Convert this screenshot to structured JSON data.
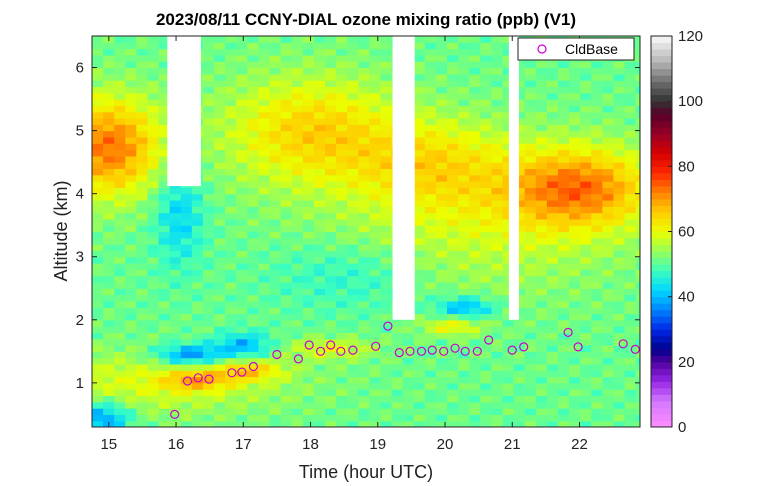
{
  "chart_data": {
    "type": "heatmap",
    "title": "2023/08/11 CCNY-DIAL ozone mixing ratio (ppb) (V1)",
    "xlabel": "Time (hour UTC)",
    "ylabel": "Altitude (km)",
    "xlim": [
      14.75,
      22.9
    ],
    "ylim": [
      0.3,
      6.5
    ],
    "x_ticks": [
      "15",
      "16",
      "17",
      "18",
      "19",
      "20",
      "21",
      "22"
    ],
    "y_ticks": [
      "1",
      "2",
      "3",
      "4",
      "5",
      "6"
    ],
    "colorbar": {
      "min": 0,
      "max": 120,
      "ticks": [
        "0",
        "20",
        "40",
        "60",
        "80",
        "100",
        "120"
      ]
    },
    "no_data_gaps": [
      {
        "x": [
          15.87,
          16.37
        ],
        "y": [
          4.12,
          6.5
        ]
      },
      {
        "x": [
          19.22,
          19.55
        ],
        "y": [
          2.0,
          6.5
        ]
      },
      {
        "x": [
          20.95,
          21.1
        ],
        "y": [
          2.0,
          6.5
        ]
      }
    ],
    "legend": {
      "location": "top-right",
      "entries": [
        "CldBase"
      ]
    },
    "cloud_base": {
      "name": "CldBase",
      "color": "#cc00cc",
      "points": [
        [
          15.98,
          0.5
        ],
        [
          16.17,
          1.03
        ],
        [
          16.33,
          1.08
        ],
        [
          16.49,
          1.06
        ],
        [
          16.83,
          1.16
        ],
        [
          16.98,
          1.17
        ],
        [
          17.15,
          1.26
        ],
        [
          17.5,
          1.45
        ],
        [
          17.82,
          1.38
        ],
        [
          17.98,
          1.6
        ],
        [
          18.15,
          1.5
        ],
        [
          18.3,
          1.6
        ],
        [
          18.45,
          1.5
        ],
        [
          18.63,
          1.52
        ],
        [
          18.97,
          1.58
        ],
        [
          19.15,
          1.9
        ],
        [
          19.32,
          1.48
        ],
        [
          19.48,
          1.5
        ],
        [
          19.65,
          1.5
        ],
        [
          19.81,
          1.52
        ],
        [
          19.98,
          1.5
        ],
        [
          20.15,
          1.55
        ],
        [
          20.3,
          1.5
        ],
        [
          20.48,
          1.5
        ],
        [
          20.65,
          1.68
        ],
        [
          21.0,
          1.52
        ],
        [
          21.17,
          1.57
        ],
        [
          21.83,
          1.8
        ],
        [
          21.98,
          1.57
        ],
        [
          22.65,
          1.62
        ],
        [
          22.83,
          1.53
        ]
      ]
    }
  }
}
